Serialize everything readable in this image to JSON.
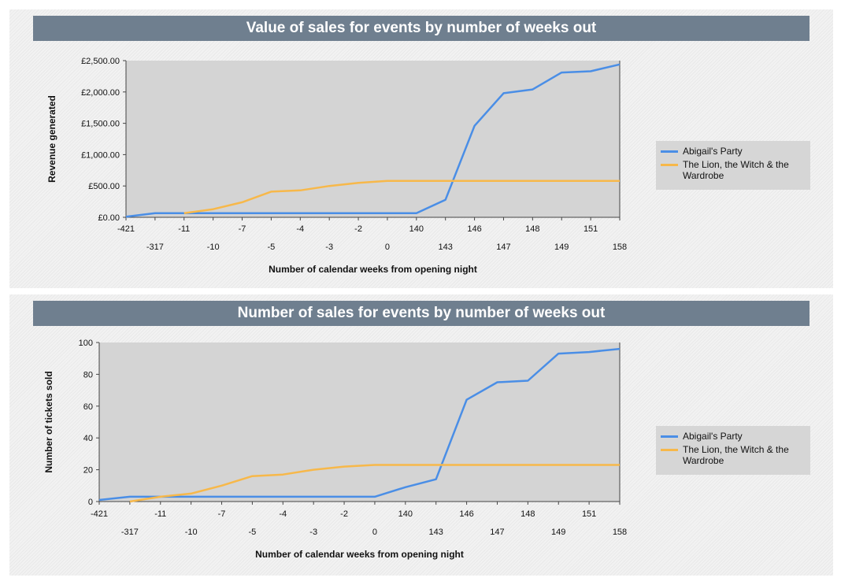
{
  "colors": {
    "series1": "#4a8ee6",
    "series2": "#f7b84a",
    "plot_bg": "#d4d4d4",
    "title_bg": "#6f7f8f"
  },
  "chart_data": [
    {
      "type": "line",
      "title": "Value of sales for events by number of weeks out",
      "xlabel": "Number of calendar weeks from opening night",
      "ylabel": "Revenue generated",
      "categories": [
        "-421",
        "-317",
        "-11",
        "-10",
        "-7",
        "-5",
        "-4",
        "-3",
        "-2",
        "0",
        "140",
        "143",
        "146",
        "147",
        "148",
        "149",
        "151",
        "158"
      ],
      "yticks": [
        "£0.00",
        "£500.00",
        "£1,000.00",
        "£1,500.00",
        "£2,000.00",
        "£2,500.00"
      ],
      "ylim": [
        0,
        2500
      ],
      "legend_position": "right",
      "series": [
        {
          "name": "Abigail's Party",
          "values": [
            10,
            65,
            65,
            65,
            65,
            65,
            65,
            65,
            65,
            65,
            65,
            280,
            1460,
            1980,
            2040,
            2310,
            2330,
            2440
          ]
        },
        {
          "name": "The Lion, the Witch & the Wardrobe",
          "values": [
            null,
            null,
            65,
            130,
            240,
            410,
            430,
            500,
            550,
            580,
            580,
            580,
            580,
            580,
            580,
            580,
            580,
            580
          ]
        }
      ]
    },
    {
      "type": "line",
      "title": "Number of sales for events by number of weeks out",
      "xlabel": "Number of calendar weeks from opening night",
      "ylabel": "Number of tickets sold",
      "categories": [
        "-421",
        "-317",
        "-11",
        "-10",
        "-7",
        "-5",
        "-4",
        "-3",
        "-2",
        "0",
        "140",
        "143",
        "146",
        "147",
        "148",
        "149",
        "151",
        "158"
      ],
      "yticks": [
        "0",
        "20",
        "40",
        "60",
        "80",
        "100"
      ],
      "ylim": [
        0,
        100
      ],
      "legend_position": "right",
      "series": [
        {
          "name": "Abigail's Party",
          "values": [
            1,
            3,
            3,
            3,
            3,
            3,
            3,
            3,
            3,
            3,
            9,
            14,
            64,
            75,
            76,
            93,
            94,
            96
          ]
        },
        {
          "name": "The Lion, the Witch & the Wardrobe",
          "values": [
            null,
            0,
            3,
            5,
            10,
            16,
            17,
            20,
            22,
            23,
            23,
            23,
            23,
            23,
            23,
            23,
            23,
            23
          ]
        }
      ]
    }
  ]
}
